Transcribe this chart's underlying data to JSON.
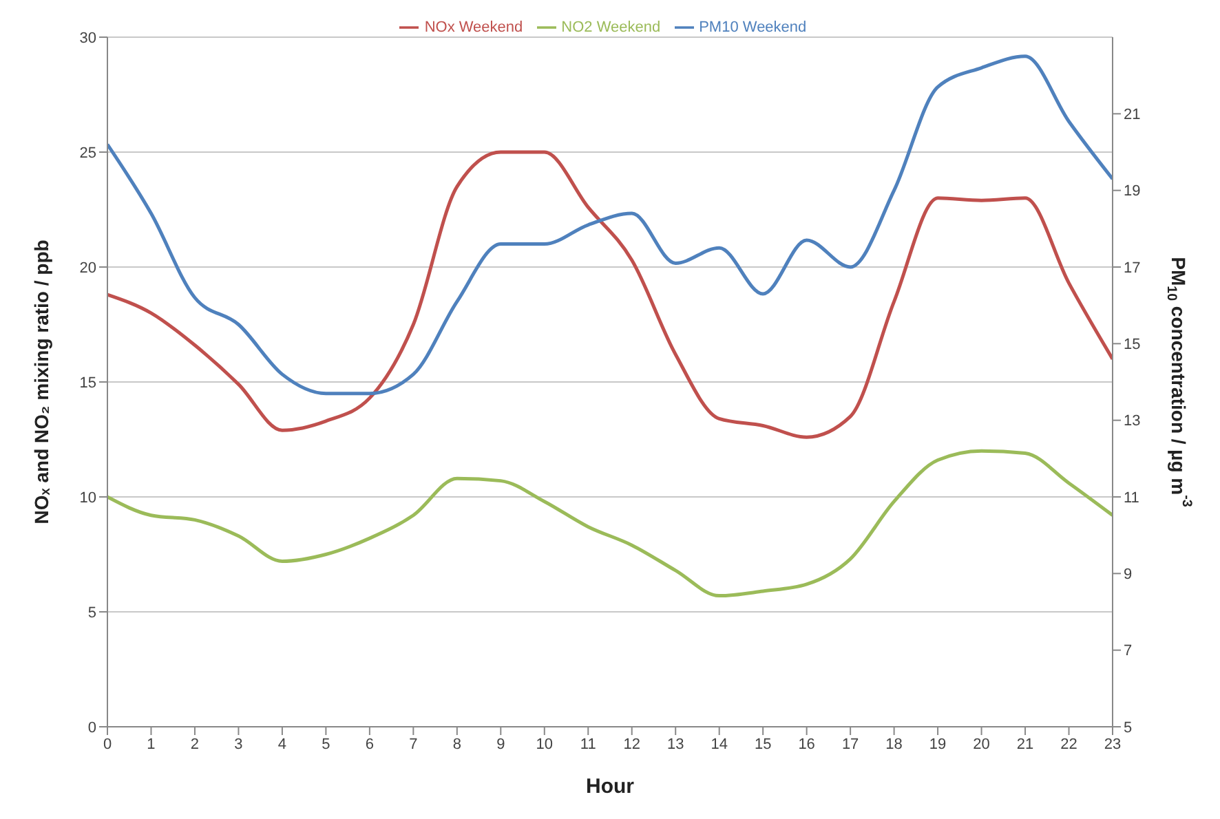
{
  "chart_data": {
    "type": "line",
    "xlabel": "Hour",
    "ylabel": "NOₓ and NO₂ mixing ratio / ppb",
    "y2label": "PM$_{10}$ concentration / µg m$^{-3}$",
    "x": [
      0,
      1,
      2,
      3,
      4,
      5,
      6,
      7,
      8,
      9,
      10,
      11,
      12,
      13,
      14,
      15,
      16,
      17,
      18,
      19,
      20,
      21,
      22,
      23
    ],
    "xlim": [
      0,
      23
    ],
    "xticks": [
      0,
      1,
      2,
      3,
      4,
      5,
      6,
      7,
      8,
      9,
      10,
      11,
      12,
      13,
      14,
      15,
      16,
      17,
      18,
      19,
      20,
      21,
      22,
      23
    ],
    "ylim": [
      0,
      30
    ],
    "yticks": [
      0,
      5,
      10,
      15,
      20,
      25,
      30
    ],
    "y2lim": [
      5,
      23
    ],
    "y2ticks": [
      5,
      7,
      9,
      11,
      13,
      15,
      17,
      19,
      21
    ],
    "grid": "y",
    "legend": "top",
    "marker": "none",
    "line_style": "solid",
    "series": [
      {
        "name": "NOx Weekend",
        "color": "#c0504d",
        "values": [
          18.8,
          18.0,
          16.6,
          14.9,
          12.9,
          13.3,
          14.3,
          17.5,
          23.5,
          25.0,
          25.0,
          22.6,
          20.3,
          16.2,
          13.4,
          13.1,
          12.6,
          13.5,
          18.5,
          23.0,
          22.9,
          23.0,
          19.3,
          16.0
        ]
      },
      {
        "name": "NO2 Weekend",
        "color": "#9bbb59",
        "values": [
          10.0,
          9.2,
          9.0,
          8.3,
          7.2,
          7.5,
          8.2,
          9.2,
          10.8,
          10.7,
          9.8,
          8.7,
          7.9,
          6.8,
          5.7,
          5.9,
          6.2,
          7.3,
          9.8,
          11.6,
          12.0,
          11.9,
          10.6,
          9.2
        ]
      },
      {
        "name": "PM10 Weekend",
        "color": "#4f81bd",
        "axis": "y2",
        "values": [
          20.2,
          18.4,
          16.2,
          15.5,
          14.2,
          13.7,
          13.7,
          14.2,
          16.1,
          17.6,
          17.6,
          18.1,
          18.4,
          17.1,
          17.5,
          16.3,
          17.7,
          17.0,
          19.0,
          21.7,
          22.2,
          22.5,
          20.8,
          19.3
        ]
      }
    ]
  }
}
